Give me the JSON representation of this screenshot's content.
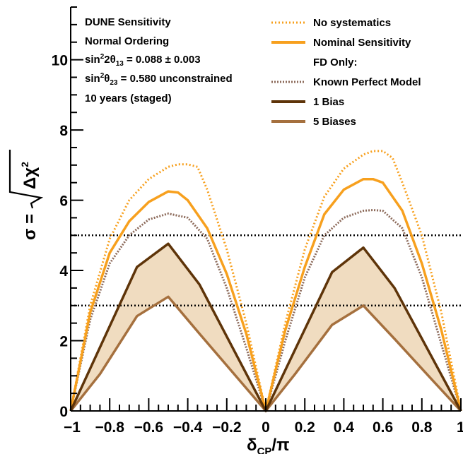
{
  "info": {
    "line1": "DUNE Sensitivity",
    "line2": "Normal Ordering",
    "line3": {
      "pre": "sin",
      "sup": "2",
      "mid": "2θ",
      "sub": "13",
      "post": " = 0.088 ± 0.003"
    },
    "line4": {
      "pre": "sin",
      "sup": "2",
      "mid": "θ",
      "sub": "23",
      "post": " = 0.580 unconstrained"
    },
    "line5": "10 years (staged)"
  },
  "legend": {
    "items": [
      {
        "label": "No systematics",
        "color": "#f7a01e",
        "style": "dotted"
      },
      {
        "label": "Nominal Sensitivity",
        "color": "#f7a01e",
        "style": "solid"
      },
      {
        "label": "FD Only:",
        "color": "",
        "style": "none"
      },
      {
        "label": "Known Perfect Model",
        "color": "#8c6a5a",
        "style": "dotted"
      },
      {
        "label": "1 Bias",
        "color": "#5e3409",
        "style": "solid"
      },
      {
        "label": "5 Biases",
        "color": "#a5703e",
        "style": "solid"
      }
    ]
  },
  "chart_data": {
    "type": "line",
    "xlabel": {
      "main": "δ",
      "sub": "CP",
      "post": "/π"
    },
    "ylabel": {
      "pre": "σ = ",
      "radical": "Δχ",
      "sup": "2"
    },
    "xlim": [
      -1,
      1
    ],
    "ylim": [
      0,
      11.5
    ],
    "xticks": [
      -1,
      -0.8,
      -0.6,
      -0.4,
      -0.2,
      0,
      0.2,
      0.4,
      0.6,
      0.8,
      1
    ],
    "xtick_labels": [
      "−1",
      "−0.8",
      "−0.6",
      "−0.4",
      "−0.2",
      "0",
      "0.2",
      "0.4",
      "0.6",
      "0.8",
      "1"
    ],
    "yticks": [
      0,
      2,
      4,
      6,
      8,
      10
    ],
    "ytick_labels": [
      "0",
      "2",
      "4",
      "6",
      "8",
      "10"
    ],
    "reference_lines": [
      3,
      5
    ],
    "band_color": "#f0dcc0",
    "series": [
      {
        "name": "No systematics",
        "color": "#f7a01e",
        "style": "dotted",
        "x": [
          -1,
          -0.9,
          -0.8,
          -0.7,
          -0.6,
          -0.5,
          -0.45,
          -0.4,
          -0.35,
          -0.3,
          -0.2,
          -0.1,
          0,
          0.1,
          0.2,
          0.3,
          0.4,
          0.5,
          0.55,
          0.6,
          0.65,
          0.7,
          0.8,
          0.9,
          1
        ],
        "y": [
          0,
          3.0,
          4.9,
          6.0,
          6.6,
          6.95,
          7.02,
          7.02,
          6.95,
          6.3,
          4.6,
          2.5,
          0,
          2.5,
          4.6,
          6.1,
          6.9,
          7.3,
          7.4,
          7.4,
          7.2,
          6.5,
          5.0,
          2.8,
          0
        ]
      },
      {
        "name": "Nominal Sensitivity",
        "color": "#f7a01e",
        "style": "solid",
        "x": [
          -1,
          -0.9,
          -0.8,
          -0.7,
          -0.6,
          -0.5,
          -0.45,
          -0.4,
          -0.3,
          -0.2,
          -0.1,
          0,
          0.1,
          0.2,
          0.3,
          0.4,
          0.5,
          0.55,
          0.6,
          0.7,
          0.8,
          0.9,
          1
        ],
        "y": [
          0,
          2.8,
          4.5,
          5.4,
          5.95,
          6.25,
          6.22,
          6.0,
          5.2,
          3.9,
          2.2,
          0,
          2.3,
          4.1,
          5.6,
          6.3,
          6.6,
          6.6,
          6.5,
          5.7,
          4.2,
          2.3,
          0
        ]
      },
      {
        "name": "Known Perfect Model",
        "color": "#8c6a5a",
        "style": "dotted",
        "x": [
          -1,
          -0.9,
          -0.8,
          -0.7,
          -0.6,
          -0.5,
          -0.4,
          -0.3,
          -0.2,
          -0.1,
          0,
          0.1,
          0.2,
          0.3,
          0.4,
          0.5,
          0.55,
          0.6,
          0.7,
          0.8,
          0.9,
          1
        ],
        "y": [
          0,
          2.6,
          4.2,
          5.0,
          5.45,
          5.62,
          5.5,
          4.9,
          3.5,
          1.8,
          0,
          2.0,
          3.8,
          5.0,
          5.5,
          5.7,
          5.72,
          5.7,
          5.2,
          3.8,
          1.9,
          0
        ]
      },
      {
        "name": "1 Bias",
        "color": "#5e3409",
        "style": "solid",
        "x": [
          -1,
          -0.66,
          -0.5,
          -0.34,
          0,
          0.34,
          0.5,
          0.66,
          1
        ],
        "y": [
          0,
          4.1,
          4.76,
          3.6,
          0,
          3.95,
          4.65,
          3.5,
          0
        ]
      },
      {
        "name": "5 Biases",
        "color": "#a5703e",
        "style": "solid",
        "x": [
          -1,
          -0.85,
          -0.66,
          -0.5,
          -0.34,
          0,
          0.15,
          0.34,
          0.5,
          0.66,
          0.85,
          1
        ],
        "y": [
          0,
          1.05,
          2.7,
          3.25,
          2.2,
          0,
          1.05,
          2.45,
          3.0,
          2.05,
          0.9,
          0
        ]
      }
    ]
  }
}
